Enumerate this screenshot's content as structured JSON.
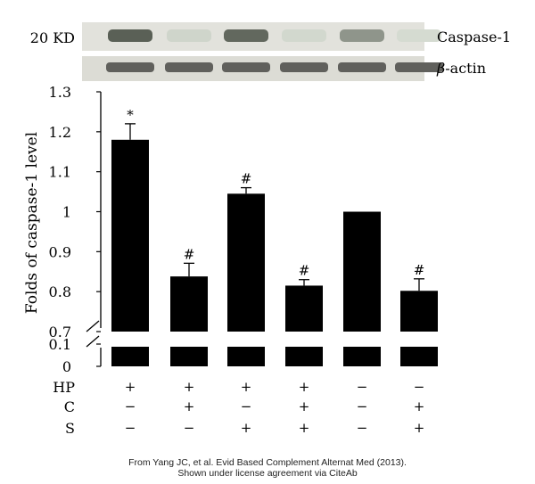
{
  "blot": {
    "marker": "20 KD",
    "row_labels": [
      "Caspase-1",
      "β-actin"
    ],
    "beta_symbol": "β",
    "actin_suffix": "-actin",
    "caspase_band_intensity": [
      0.9,
      0.12,
      0.85,
      0.1,
      0.55,
      0.08
    ],
    "actin_band_intensity": [
      0.85,
      0.85,
      0.85,
      0.85,
      0.85,
      0.85
    ]
  },
  "chart_data": {
    "type": "bar",
    "ylabel": "Folds of caspase-1 level",
    "ylim_upper": [
      0.7,
      1.3
    ],
    "ylim_lower": [
      0,
      0.1
    ],
    "yticks_upper": [
      "0.7",
      "0.8",
      "0.9",
      "1",
      "1.1",
      "1.2",
      "1.3"
    ],
    "yticks_lower": [
      "0",
      "0.1"
    ],
    "values": [
      1.18,
      0.838,
      1.045,
      0.815,
      1.0,
      0.802
    ],
    "errors": [
      0.04,
      0.033,
      0.015,
      0.015,
      0.0,
      0.03
    ],
    "significance": [
      "*",
      "#",
      "#",
      "#",
      "",
      "#"
    ],
    "bar_color": "#000000",
    "treatments": [
      {
        "name": "HP",
        "signs": [
          "+",
          "+",
          "+",
          "+",
          "−",
          "−"
        ]
      },
      {
        "name": "C",
        "signs": [
          "−",
          "+",
          "−",
          "+",
          "−",
          "+"
        ]
      },
      {
        "name": "S",
        "signs": [
          "−",
          "−",
          "+",
          "+",
          "−",
          "+"
        ]
      }
    ]
  },
  "caption": {
    "line1": "From Yang JC, et al. Evid Based Complement Alternat Med (2013).",
    "line2": "Shown under license agreement via CiteAb"
  }
}
